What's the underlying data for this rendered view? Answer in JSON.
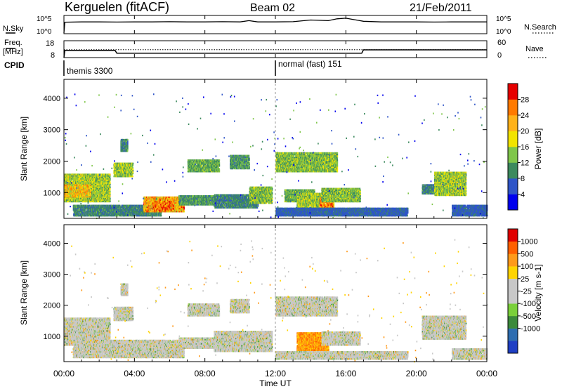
{
  "header": {
    "station": "Kerguelen (fitACF)",
    "beam": "Beam 02",
    "date": "21/Feb/2011"
  },
  "top_panels": {
    "nsky_label": "N.Sky",
    "nsky_ticks": [
      "10^5",
      "10^0"
    ],
    "nsearch_label": "N.Search",
    "nsearch_ticks": [
      "10^5",
      "10^0"
    ],
    "freq_label": "Freq.",
    "freq_unit": "[MHz]",
    "freq_ticks": [
      "18",
      "8"
    ],
    "nave_label": "Nave",
    "nave_ticks": [
      "60",
      "0"
    ],
    "cpid_label": "CPID",
    "cpid_segments": [
      {
        "label": "themis 3300",
        "start_hour": 0
      },
      {
        "label": "normal (fast) 151",
        "start_hour": 12
      }
    ]
  },
  "x_axis": {
    "label": "Time UT",
    "range_hours": [
      0,
      24
    ],
    "ticks": [
      {
        "hour": 0,
        "label": "00:00"
      },
      {
        "hour": 4,
        "label": "04:00"
      },
      {
        "hour": 8,
        "label": "08:00"
      },
      {
        "hour": 12,
        "label": "12:00"
      },
      {
        "hour": 16,
        "label": "16:00"
      },
      {
        "hour": 20,
        "label": "20:00"
      },
      {
        "hour": 24,
        "label": "00:00"
      }
    ]
  },
  "chart_data": [
    {
      "type": "heatmap",
      "name": "power",
      "ylabel": "Slant Range [km]",
      "ylim": [
        180,
        4600
      ],
      "yticks": [
        1000,
        2000,
        3000,
        4000
      ],
      "colorbar": {
        "label": "Power [dB]",
        "ticks": [
          "4",
          "8",
          "12",
          "16",
          "20",
          "24",
          "28"
        ],
        "colors": [
          "#0000ee",
          "#2f55c8",
          "#3c8a5e",
          "#7fc64a",
          "#f2e400",
          "#ffb21a",
          "#ff7a00",
          "#e60000"
        ]
      },
      "echo_regions": [
        {
          "t0": 0.0,
          "t1": 2.6,
          "r0": 700,
          "r1": 1600,
          "level": 0.55
        },
        {
          "t0": 0.0,
          "t1": 1.5,
          "r0": 850,
          "r1": 1250,
          "level": 0.75
        },
        {
          "t0": 0.5,
          "t1": 5.5,
          "r0": 250,
          "r1": 600,
          "level": 0.35
        },
        {
          "t0": 4.5,
          "t1": 6.8,
          "r0": 380,
          "r1": 850,
          "level": 0.8
        },
        {
          "t0": 5.0,
          "t1": 6.2,
          "r0": 420,
          "r1": 700,
          "level": 0.95
        },
        {
          "t0": 2.8,
          "t1": 3.9,
          "r0": 1500,
          "r1": 1950,
          "level": 0.55
        },
        {
          "t0": 3.2,
          "t1": 3.6,
          "r0": 2300,
          "r1": 2700,
          "level": 0.35
        },
        {
          "t0": 6.5,
          "t1": 8.6,
          "r0": 600,
          "r1": 900,
          "level": 0.4
        },
        {
          "t0": 7.0,
          "t1": 8.8,
          "r0": 1650,
          "r1": 2050,
          "level": 0.45
        },
        {
          "t0": 9.4,
          "t1": 10.5,
          "r0": 1750,
          "r1": 2200,
          "level": 0.4
        },
        {
          "t0": 8.5,
          "t1": 11.0,
          "r0": 500,
          "r1": 950,
          "level": 0.35
        },
        {
          "t0": 10.5,
          "t1": 11.8,
          "r0": 650,
          "r1": 1150,
          "level": 0.5
        },
        {
          "t0": 12.0,
          "t1": 15.5,
          "r0": 1650,
          "r1": 2250,
          "level": 0.5
        },
        {
          "t0": 12.5,
          "t1": 14.2,
          "r0": 700,
          "r1": 1100,
          "level": 0.45
        },
        {
          "t0": 13.2,
          "t1": 14.6,
          "r0": 450,
          "r1": 950,
          "level": 0.55
        },
        {
          "t0": 14.5,
          "t1": 15.3,
          "r0": 450,
          "r1": 850,
          "level": 0.9
        },
        {
          "t0": 14.6,
          "t1": 16.8,
          "r0": 700,
          "r1": 1150,
          "level": 0.5
        },
        {
          "t0": 12.0,
          "t1": 19.5,
          "r0": 250,
          "r1": 500,
          "level": 0.25
        },
        {
          "t0": 20.3,
          "t1": 21.0,
          "r0": 950,
          "r1": 1250,
          "level": 0.35
        },
        {
          "t0": 21.0,
          "t1": 22.8,
          "r0": 900,
          "r1": 1650,
          "level": 0.55
        },
        {
          "t0": 22.0,
          "t1": 24.0,
          "r0": 250,
          "r1": 600,
          "level": 0.25
        }
      ]
    },
    {
      "type": "heatmap",
      "name": "velocity",
      "ylabel": "Slant Range [km]",
      "ylim": [
        180,
        4600
      ],
      "yticks": [
        1000,
        2000,
        3000,
        4000
      ],
      "colorbar": {
        "label": "Velocity [m s-1]",
        "ticks": [
          "1000",
          "500",
          "100",
          "25",
          "-25",
          "-100",
          "-500",
          "-1000"
        ],
        "colors": [
          "#1f3fc4",
          "#2e6db0",
          "#3b8a3b",
          "#7ad03a",
          "#c8c8c8",
          "#c8c8c8",
          "#ffd400",
          "#ff9a1a",
          "#ff6000",
          "#e00000"
        ]
      },
      "echo_regions": [
        {
          "t0": 0.0,
          "t1": 2.6,
          "r0": 700,
          "r1": 1600,
          "level": 0.5
        },
        {
          "t0": 0.5,
          "t1": 6.8,
          "r0": 300,
          "r1": 850,
          "level": 0.5
        },
        {
          "t0": 2.8,
          "t1": 3.9,
          "r0": 1500,
          "r1": 1950,
          "level": 0.5
        },
        {
          "t0": 3.2,
          "t1": 3.6,
          "r0": 2300,
          "r1": 2700,
          "level": 0.2
        },
        {
          "t0": 6.5,
          "t1": 8.8,
          "r0": 600,
          "r1": 950,
          "level": 0.5
        },
        {
          "t0": 7.0,
          "t1": 8.8,
          "r0": 1650,
          "r1": 2050,
          "level": 0.5
        },
        {
          "t0": 9.4,
          "t1": 10.5,
          "r0": 1750,
          "r1": 2200,
          "level": 0.5
        },
        {
          "t0": 8.5,
          "t1": 11.8,
          "r0": 500,
          "r1": 1150,
          "level": 0.5
        },
        {
          "t0": 12.0,
          "t1": 15.5,
          "r0": 1650,
          "r1": 2250,
          "level": 0.55
        },
        {
          "t0": 13.2,
          "t1": 15.0,
          "r0": 450,
          "r1": 1100,
          "level": 0.9
        },
        {
          "t0": 14.6,
          "t1": 16.8,
          "r0": 700,
          "r1": 1150,
          "level": 0.5
        },
        {
          "t0": 12.0,
          "t1": 19.5,
          "r0": 250,
          "r1": 500,
          "level": 0.6
        },
        {
          "t0": 20.3,
          "t1": 22.8,
          "r0": 900,
          "r1": 1650,
          "level": 0.5
        },
        {
          "t0": 22.0,
          "t1": 24.0,
          "r0": 250,
          "r1": 600,
          "level": 0.5
        }
      ]
    },
    {
      "type": "line",
      "name": "nsky",
      "x_hours": [
        0,
        0.05,
        1,
        2,
        3,
        4,
        5,
        6,
        7,
        8,
        9,
        10,
        10.5,
        11,
        12,
        13,
        14,
        15,
        15.5,
        16,
        16.5,
        17,
        18,
        19,
        20,
        21,
        22,
        23,
        24
      ],
      "values": [
        0,
        3.5,
        3.6,
        3.6,
        3.55,
        3.6,
        3.6,
        3.65,
        3.6,
        3.6,
        3.65,
        3.6,
        4.0,
        3.6,
        3.6,
        3.65,
        4.2,
        4.0,
        4.6,
        4.8,
        4.3,
        3.8,
        3.6,
        3.6,
        3.6,
        3.55,
        3.6,
        3.6,
        3.6
      ]
    },
    {
      "type": "line",
      "name": "frequency",
      "x_hours": [
        0,
        0.05,
        2.9,
        3.0,
        16.9,
        17.0,
        24
      ],
      "values": [
        8,
        12.3,
        12.3,
        10.6,
        10.6,
        12.6,
        12.6
      ]
    },
    {
      "type": "line",
      "name": "nave",
      "x_hours": [
        0,
        24
      ],
      "values": [
        28,
        28
      ]
    }
  ]
}
